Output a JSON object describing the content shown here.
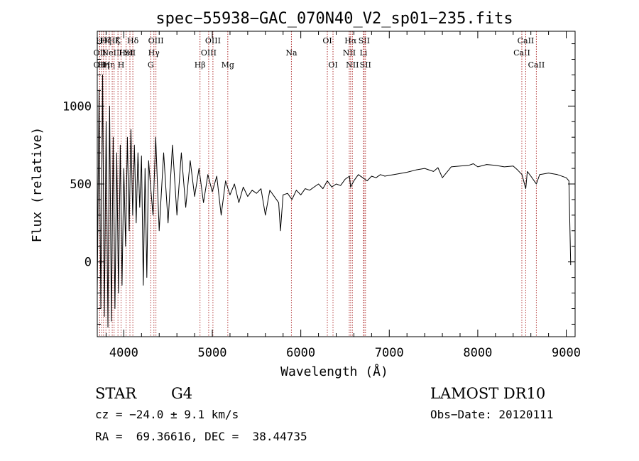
{
  "chart_data": {
    "type": "line",
    "title": "spec−55938−GAC_070N40_V2_sp01−235.fits",
    "xlabel": "Wavelength (Å)",
    "ylabel": "Flux (relative)",
    "xlim": [
      3700,
      9100
    ],
    "ylim": [
      -480,
      1480
    ],
    "grid": false,
    "x_ticks": [
      {
        "value": 4000,
        "label": "4000"
      },
      {
        "value": 5000,
        "label": "5000"
      },
      {
        "value": 6000,
        "label": "6000"
      },
      {
        "value": 7000,
        "label": "7000"
      },
      {
        "value": 8000,
        "label": "8000"
      },
      {
        "value": 9000,
        "label": "9000"
      }
    ],
    "y_ticks": [
      {
        "value": 0,
        "label": "0"
      },
      {
        "value": 500,
        "label": "500"
      },
      {
        "value": 1000,
        "label": "1000"
      }
    ],
    "series": [
      {
        "color": "#000000",
        "x": [
          3700,
          3720,
          3740,
          3760,
          3780,
          3800,
          3820,
          3840,
          3860,
          3880,
          3900,
          3920,
          3940,
          3960,
          3980,
          4000,
          4020,
          4040,
          4060,
          4080,
          4100,
          4120,
          4140,
          4160,
          4180,
          4200,
          4220,
          4240,
          4260,
          4280,
          4300,
          4330,
          4360,
          4400,
          4450,
          4500,
          4550,
          4600,
          4650,
          4700,
          4750,
          4800,
          4850,
          4900,
          4950,
          5000,
          5050,
          5100,
          5150,
          5200,
          5250,
          5300,
          5350,
          5400,
          5450,
          5500,
          5550,
          5600,
          5650,
          5700,
          5750,
          5770,
          5800,
          5850,
          5900,
          5950,
          6000,
          6050,
          6100,
          6150,
          6200,
          6250,
          6300,
          6350,
          6400,
          6450,
          6500,
          6550,
          6563,
          6600,
          6650,
          6700,
          6750,
          6800,
          6850,
          6900,
          6950,
          7000,
          7100,
          7200,
          7300,
          7400,
          7500,
          7550,
          7600,
          7700,
          7800,
          7900,
          7950,
          8000,
          8100,
          8200,
          8300,
          8400,
          8450,
          8500,
          8542,
          8560,
          8600,
          8662,
          8700,
          8800,
          8900,
          9000,
          9030,
          9050
        ],
        "y": [
          -200,
          1100,
          -300,
          1200,
          -350,
          900,
          -420,
          1000,
          -380,
          800,
          -300,
          700,
          -200,
          750,
          -150,
          600,
          100,
          800,
          200,
          850,
          300,
          750,
          250,
          700,
          350,
          680,
          -150,
          600,
          -100,
          650,
          500,
          300,
          800,
          200,
          700,
          250,
          750,
          300,
          700,
          350,
          650,
          420,
          600,
          380,
          560,
          450,
          550,
          300,
          520,
          430,
          500,
          380,
          480,
          420,
          460,
          440,
          470,
          300,
          460,
          420,
          380,
          200,
          430,
          440,
          400,
          460,
          430,
          470,
          460,
          480,
          500,
          470,
          520,
          480,
          500,
          490,
          530,
          550,
          480,
          520,
          560,
          540,
          520,
          550,
          540,
          560,
          550,
          555,
          565,
          575,
          590,
          600,
          580,
          605,
          540,
          610,
          615,
          620,
          630,
          610,
          625,
          620,
          610,
          615,
          590,
          560,
          470,
          580,
          550,
          500,
          560,
          570,
          560,
          540,
          520,
          -20
        ]
      }
    ],
    "line_markers": [
      {
        "x": 3727,
        "label": "OII",
        "row": 2
      },
      {
        "x": 3727,
        "label": "OII",
        "row": 3
      },
      {
        "x": 3750,
        "label": "Hθ",
        "row": 1
      },
      {
        "x": 3771,
        "label": "Hη",
        "row": 3
      },
      {
        "x": 3798,
        "label": "Hζ",
        "row": 1
      },
      {
        "x": 3835,
        "label": "Hη",
        "row": 3
      },
      {
        "x": 3869,
        "label": "NeIII",
        "row": 2
      },
      {
        "x": 3890,
        "label": "Hζ",
        "row": 1
      },
      {
        "x": 3934,
        "label": "K",
        "row": 1
      },
      {
        "x": 3969,
        "label": "H",
        "row": 3
      },
      {
        "x": 4026,
        "label": "HeI",
        "row": 2
      },
      {
        "x": 4069,
        "label": "SII",
        "row": 2
      },
      {
        "x": 4102,
        "label": "Hδ",
        "row": 1
      },
      {
        "x": 4304,
        "label": "G",
        "row": 3
      },
      {
        "x": 4340,
        "label": "Hγ",
        "row": 2
      },
      {
        "x": 4363,
        "label": "OIII",
        "row": 1
      },
      {
        "x": 4861,
        "label": "Hβ",
        "row": 3
      },
      {
        "x": 4959,
        "label": "OIII",
        "row": 2
      },
      {
        "x": 5007,
        "label": "OIII",
        "row": 1
      },
      {
        "x": 5175,
        "label": "Mg",
        "row": 3
      },
      {
        "x": 5894,
        "label": "Na",
        "row": 2
      },
      {
        "x": 6300,
        "label": "OI",
        "row": 1
      },
      {
        "x": 6364,
        "label": "OI",
        "row": 3
      },
      {
        "x": 6548,
        "label": "NII",
        "row": 2
      },
      {
        "x": 6563,
        "label": "Hα",
        "row": 1
      },
      {
        "x": 6583,
        "label": "NII",
        "row": 3
      },
      {
        "x": 6708,
        "label": "Li",
        "row": 2
      },
      {
        "x": 6716,
        "label": "SII",
        "row": 1
      },
      {
        "x": 6731,
        "label": "SII",
        "row": 3
      },
      {
        "x": 8498,
        "label": "CaII",
        "row": 2
      },
      {
        "x": 8542,
        "label": "CaII",
        "row": 1
      },
      {
        "x": 8662,
        "label": "CaII",
        "row": 3
      }
    ]
  },
  "footer": {
    "object_class": "STAR",
    "subclass": "G4",
    "survey": "LAMOST DR10",
    "cz": "cz = −24.0 ± 9.1 km/s",
    "obs_date": "Obs−Date: 20120111",
    "coords": "RA =  69.36616, DEC =  38.44735"
  }
}
